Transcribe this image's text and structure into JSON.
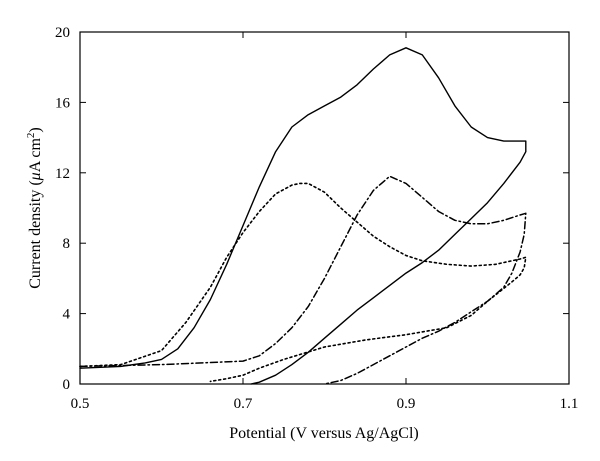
{
  "chart_data": {
    "type": "line",
    "xlabel": "Potential (V versus Ag/AgCl)",
    "ylabel_parts": {
      "prefix": "Current density (",
      "mu": "μ",
      "unit": "A cm",
      "exponent": "2",
      "suffix": ")"
    },
    "xlim": [
      0.5,
      1.1
    ],
    "ylim": [
      0,
      20
    ],
    "xticks": [
      0.5,
      0.7,
      0.9,
      1.1
    ],
    "yticks": [
      0,
      4,
      8,
      12,
      16,
      20
    ],
    "xtick_labels": [
      "0.5",
      "0.7",
      "0.9",
      "1.1"
    ],
    "ytick_labels": [
      "0",
      "4",
      "8",
      "12",
      "16",
      "20"
    ],
    "grid": false,
    "legend": "none",
    "series": [
      {
        "style": "solid",
        "color": "#000000",
        "points": [
          [
            0.5,
            0.9
          ],
          [
            0.55,
            1.0
          ],
          [
            0.58,
            1.2
          ],
          [
            0.6,
            1.4
          ],
          [
            0.62,
            2.0
          ],
          [
            0.64,
            3.2
          ],
          [
            0.66,
            4.8
          ],
          [
            0.68,
            6.8
          ],
          [
            0.7,
            9.0
          ],
          [
            0.72,
            11.2
          ],
          [
            0.74,
            13.2
          ],
          [
            0.76,
            14.6
          ],
          [
            0.78,
            15.3
          ],
          [
            0.8,
            15.8
          ],
          [
            0.82,
            16.3
          ],
          [
            0.84,
            17.0
          ],
          [
            0.86,
            17.9
          ],
          [
            0.88,
            18.7
          ],
          [
            0.9,
            19.1
          ],
          [
            0.92,
            18.7
          ],
          [
            0.94,
            17.4
          ],
          [
            0.96,
            15.8
          ],
          [
            0.98,
            14.6
          ],
          [
            1.0,
            14.0
          ],
          [
            1.02,
            13.8
          ],
          [
            1.047,
            13.8
          ],
          [
            1.047,
            13.2
          ],
          [
            1.04,
            12.6
          ],
          [
            1.02,
            11.4
          ],
          [
            1.0,
            10.3
          ],
          [
            0.98,
            9.4
          ],
          [
            0.96,
            8.5
          ],
          [
            0.94,
            7.6
          ],
          [
            0.92,
            6.9
          ],
          [
            0.9,
            6.3
          ],
          [
            0.88,
            5.6
          ],
          [
            0.86,
            4.9
          ],
          [
            0.84,
            4.2
          ],
          [
            0.82,
            3.4
          ],
          [
            0.8,
            2.6
          ],
          [
            0.78,
            1.8
          ],
          [
            0.76,
            1.1
          ],
          [
            0.74,
            0.5
          ],
          [
            0.72,
            0.1
          ],
          [
            0.71,
            0
          ]
        ]
      },
      {
        "style": "dotted",
        "color": "#000000",
        "points": [
          [
            0.5,
            1.0
          ],
          [
            0.55,
            1.1
          ],
          [
            0.6,
            1.9
          ],
          [
            0.63,
            3.5
          ],
          [
            0.66,
            5.5
          ],
          [
            0.68,
            7.2
          ],
          [
            0.7,
            8.6
          ],
          [
            0.72,
            9.8
          ],
          [
            0.74,
            10.8
          ],
          [
            0.76,
            11.3
          ],
          [
            0.77,
            11.4
          ],
          [
            0.78,
            11.4
          ],
          [
            0.8,
            10.9
          ],
          [
            0.82,
            10.0
          ],
          [
            0.84,
            9.2
          ],
          [
            0.86,
            8.4
          ],
          [
            0.88,
            7.8
          ],
          [
            0.9,
            7.3
          ],
          [
            0.92,
            7.0
          ],
          [
            0.95,
            6.8
          ],
          [
            0.98,
            6.7
          ],
          [
            1.01,
            6.8
          ],
          [
            1.04,
            7.1
          ],
          [
            1.047,
            7.2
          ],
          [
            1.045,
            6.6
          ],
          [
            1.04,
            6.2
          ],
          [
            1.03,
            5.8
          ],
          [
            1.0,
            4.7
          ],
          [
            0.98,
            3.9
          ],
          [
            0.95,
            3.2
          ],
          [
            0.9,
            2.8
          ],
          [
            0.85,
            2.5
          ],
          [
            0.8,
            2.1
          ],
          [
            0.75,
            1.4
          ],
          [
            0.72,
            0.9
          ],
          [
            0.7,
            0.5
          ],
          [
            0.68,
            0.3
          ],
          [
            0.66,
            0.15
          ]
        ]
      },
      {
        "style": "dashdot",
        "color": "#000000",
        "points": [
          [
            0.5,
            1.0
          ],
          [
            0.55,
            1.05
          ],
          [
            0.6,
            1.1
          ],
          [
            0.65,
            1.2
          ],
          [
            0.7,
            1.3
          ],
          [
            0.72,
            1.6
          ],
          [
            0.74,
            2.3
          ],
          [
            0.76,
            3.2
          ],
          [
            0.78,
            4.4
          ],
          [
            0.8,
            6.0
          ],
          [
            0.82,
            7.8
          ],
          [
            0.84,
            9.6
          ],
          [
            0.86,
            11.0
          ],
          [
            0.88,
            11.8
          ],
          [
            0.9,
            11.4
          ],
          [
            0.92,
            10.6
          ],
          [
            0.94,
            9.8
          ],
          [
            0.96,
            9.3
          ],
          [
            0.98,
            9.1
          ],
          [
            1.0,
            9.1
          ],
          [
            1.02,
            9.3
          ],
          [
            1.04,
            9.6
          ],
          [
            1.047,
            9.7
          ],
          [
            1.045,
            8.5
          ],
          [
            1.04,
            7.5
          ],
          [
            1.03,
            6.3
          ],
          [
            1.02,
            5.5
          ],
          [
            1.0,
            4.7
          ],
          [
            0.98,
            4.1
          ],
          [
            0.96,
            3.5
          ],
          [
            0.94,
            3.0
          ],
          [
            0.92,
            2.6
          ],
          [
            0.9,
            2.1
          ],
          [
            0.88,
            1.6
          ],
          [
            0.86,
            1.1
          ],
          [
            0.84,
            0.6
          ],
          [
            0.82,
            0.2
          ],
          [
            0.8,
            0
          ]
        ]
      }
    ]
  }
}
